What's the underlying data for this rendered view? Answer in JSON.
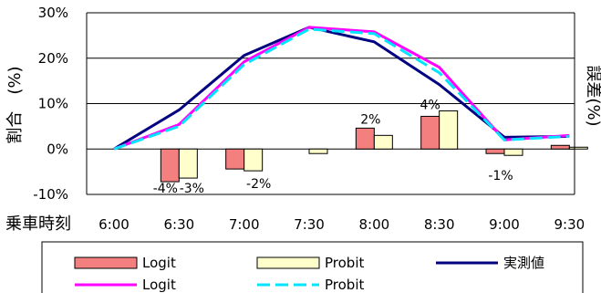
{
  "chart_data": {
    "type": "bar+line",
    "categories": [
      "6:00",
      "6:30",
      "7:00",
      "7:30",
      "8:00",
      "8:30",
      "9:00",
      "9:30"
    ],
    "ylabel": "割合　(%)",
    "y2label": "誤差(%)",
    "xlabel": "乗車時刻",
    "ylim": [
      -10,
      30
    ],
    "yticks": [
      "-10%",
      "0%",
      "10%",
      "20%",
      "30%"
    ],
    "grid": true,
    "bars": [
      {
        "name": "Logit",
        "color": "#f47f7f",
        "values": [
          0,
          -7.2,
          -4.4,
          0,
          4.6,
          7.2,
          -1.0,
          0.8
        ]
      },
      {
        "name": "Probit",
        "color": "#ffffcc",
        "values": [
          0,
          -6.4,
          -4.8,
          -1.0,
          3.0,
          8.4,
          -1.4,
          0.4
        ]
      }
    ],
    "bar_labels": [
      {
        "category": "6:30",
        "text": "-4%"
      },
      {
        "category": "6:30",
        "text": "-3%"
      },
      {
        "category": "7:00",
        "text": "-2%"
      },
      {
        "category": "8:00",
        "text": "2%"
      },
      {
        "category": "8:30",
        "text": "4%"
      },
      {
        "category": "9:00",
        "text": "-1%"
      }
    ],
    "lines": [
      {
        "name": "実測値",
        "color": "#000080",
        "dash": "solid",
        "values": [
          0,
          8.6,
          20.6,
          26.8,
          23.6,
          14.2,
          2.6,
          2.8
        ]
      },
      {
        "name": "Logit",
        "color": "#ff00ff",
        "dash": "solid",
        "values": [
          0,
          5.4,
          19.2,
          26.8,
          25.8,
          18.0,
          2.0,
          3.0
        ]
      },
      {
        "name": "Probit",
        "color": "#00e5ff",
        "dash": "dash",
        "values": [
          0,
          5.0,
          18.6,
          26.4,
          25.4,
          16.8,
          2.0,
          2.8
        ]
      }
    ],
    "legend": {
      "placement": "bottom",
      "items": [
        {
          "label": "Logit",
          "kind": "bar",
          "color": "#f47f7f"
        },
        {
          "label": "Probit",
          "kind": "bar",
          "color": "#ffffcc"
        },
        {
          "label": "実測値",
          "kind": "line",
          "color": "#000080",
          "dash": "solid"
        },
        {
          "label": "Logit",
          "kind": "line",
          "color": "#ff00ff",
          "dash": "solid"
        },
        {
          "label": "Probit",
          "kind": "line",
          "color": "#00e5ff",
          "dash": "dash"
        }
      ]
    }
  }
}
